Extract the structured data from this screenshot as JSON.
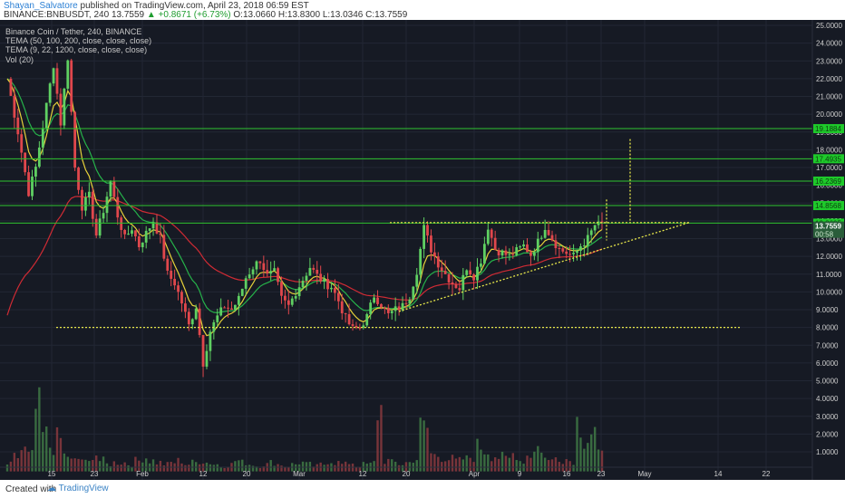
{
  "header": {
    "author": "Shayan_Salvatore",
    "published": "published on TradingView.com, April 23, 2018 06:59 EST",
    "symbol": "BINANCE:BNBUSDT, 240",
    "last": "13.7559",
    "change": "+0.8671 (+6.73%)",
    "open": "O:13.0660",
    "high": "H:13.8300",
    "low": "L:13.0346",
    "close": "C:13.7559"
  },
  "legend": {
    "title": "Binance Coin / Tether, 240, BINANCE",
    "tema1": "TEMA (50, 100, 200, close, close, close)",
    "tema2": "TEMA (9, 22, 1200, close, close, close)",
    "vol": "Vol (20)"
  },
  "footer": {
    "created": "Created with",
    "brand": "TradingView"
  },
  "colors": {
    "background": "#161a24",
    "up": "#5fd062",
    "down": "#e0474c",
    "ma_red": "#d02b34",
    "ma_green": "#26b24a",
    "ma_yellow": "#e6d13a",
    "level_line": "#2fc42f",
    "dotted": "#e8e84a"
  },
  "chart_data": {
    "type": "candlestick",
    "x_ticks": [
      "15",
      "23",
      "Feb",
      "12",
      "20",
      "Mar",
      "12",
      "20",
      "Apr",
      "9",
      "16",
      "23",
      "May",
      "14",
      "22"
    ],
    "y_ticks": [
      "25.0000",
      "24.0000",
      "23.0000",
      "22.0000",
      "21.0000",
      "20.0000",
      "19.0000",
      "18.0000",
      "17.0000",
      "16.0000",
      "15.0000",
      "14.0000",
      "13.0000",
      "12.0000",
      "11.0000",
      "10.0000",
      "9.0000",
      "8.0000",
      "7.0000",
      "6.0000",
      "5.0000",
      "4.0000",
      "3.0000",
      "2.0000",
      "1.0000"
    ],
    "price_range": [
      0,
      25.5
    ],
    "horizontal_levels": [
      19.1884,
      17.4935,
      16.2369,
      14.8568,
      13.8695
    ],
    "level_labels": [
      "19.1884",
      "17.4935",
      "16.2369",
      "14.8568",
      "13.8695"
    ],
    "current_price_label": "13.7559",
    "countdown_label": "00:58",
    "trend_dates_hint": "approx. 4h candles, Jan 10 – Apr 23, 2018",
    "close_path": [
      [
        0,
        22.0
      ],
      [
        3,
        19.0
      ],
      [
        6,
        15.6
      ],
      [
        8,
        17.0
      ],
      [
        11,
        20.5
      ],
      [
        13,
        22.8
      ],
      [
        15,
        19.5
      ],
      [
        17,
        23.2
      ],
      [
        19,
        17.0
      ],
      [
        21,
        14.8
      ],
      [
        23,
        15.4
      ],
      [
        25,
        13.2
      ],
      [
        27,
        14.6
      ],
      [
        29,
        16.2
      ],
      [
        31,
        14.3
      ],
      [
        33,
        13.0
      ],
      [
        35,
        13.6
      ],
      [
        37,
        12.6
      ],
      [
        39,
        13.3
      ],
      [
        41,
        14.0
      ],
      [
        43,
        13.0
      ],
      [
        45,
        11.0
      ],
      [
        47,
        10.5
      ],
      [
        49,
        9.4
      ],
      [
        51,
        8.1
      ],
      [
        53,
        9.2
      ],
      [
        55,
        6.0
      ],
      [
        57,
        7.8
      ],
      [
        59,
        8.6
      ],
      [
        61,
        9.2
      ],
      [
        63,
        9.0
      ],
      [
        65,
        9.6
      ],
      [
        67,
        10.8
      ],
      [
        69,
        11.4
      ],
      [
        71,
        11.8
      ],
      [
        73,
        10.9
      ],
      [
        75,
        11.1
      ],
      [
        77,
        9.6
      ],
      [
        79,
        9.2
      ],
      [
        81,
        10.0
      ],
      [
        83,
        10.7
      ],
      [
        85,
        11.4
      ],
      [
        87,
        10.9
      ],
      [
        89,
        10.5
      ],
      [
        91,
        10.3
      ],
      [
        93,
        9.5
      ],
      [
        95,
        8.5
      ],
      [
        97,
        7.9
      ],
      [
        99,
        8.0
      ],
      [
        101,
        8.6
      ],
      [
        103,
        9.8
      ],
      [
        105,
        9.3
      ],
      [
        107,
        8.7
      ],
      [
        109,
        9.0
      ],
      [
        111,
        9.2
      ],
      [
        113,
        9.8
      ],
      [
        115,
        11.2
      ],
      [
        117,
        13.6
      ],
      [
        119,
        12.4
      ],
      [
        121,
        11.6
      ],
      [
        123,
        11.0
      ],
      [
        125,
        10.5
      ],
      [
        127,
        10.2
      ],
      [
        129,
        11.4
      ],
      [
        131,
        10.9
      ],
      [
        133,
        11.8
      ],
      [
        135,
        13.7
      ],
      [
        137,
        12.4
      ],
      [
        139,
        12.2
      ],
      [
        141,
        12.0
      ],
      [
        143,
        12.3
      ],
      [
        145,
        12.6
      ],
      [
        147,
        12.1
      ],
      [
        149,
        12.8
      ],
      [
        151,
        13.7
      ],
      [
        153,
        13.0
      ],
      [
        155,
        12.4
      ],
      [
        157,
        12.2
      ],
      [
        159,
        12.0
      ],
      [
        161,
        12.6
      ],
      [
        163,
        13.0
      ],
      [
        165,
        13.76
      ]
    ],
    "volume_note": "Volume bars (in millions-scaled units) shown at bottom",
    "volume_values": [
      0.4,
      0.8,
      1.2,
      0.9,
      3.4,
      2.0,
      1.4,
      1.8,
      0.9,
      0.6,
      0.7,
      0.5,
      1.0,
      0.6,
      0.4,
      0.5,
      0.5,
      0.4,
      0.6,
      0.8,
      0.6,
      0.5,
      0.4,
      0.5,
      0.6,
      0.4,
      0.5,
      0.6,
      0.5,
      0.4,
      0.3,
      0.4,
      0.6,
      0.5,
      0.4,
      0.3,
      0.4,
      0.5,
      0.4,
      0.3,
      0.4,
      0.5,
      0.4,
      0.3,
      0.4,
      0.6,
      0.5,
      0.4,
      0.5,
      0.3,
      0.4,
      0.5,
      3.5,
      0.6,
      0.5,
      0.4,
      0.5,
      0.7,
      2.4,
      1.0,
      0.9,
      0.8,
      0.7,
      0.6,
      0.7,
      0.8,
      1.4,
      1.2,
      0.9,
      0.8,
      0.7,
      1.0,
      0.6,
      0.9,
      1.4,
      1.0,
      0.6,
      0.8,
      0.7,
      0.6,
      2.8,
      1.9,
      2.2,
      0.9
    ]
  }
}
